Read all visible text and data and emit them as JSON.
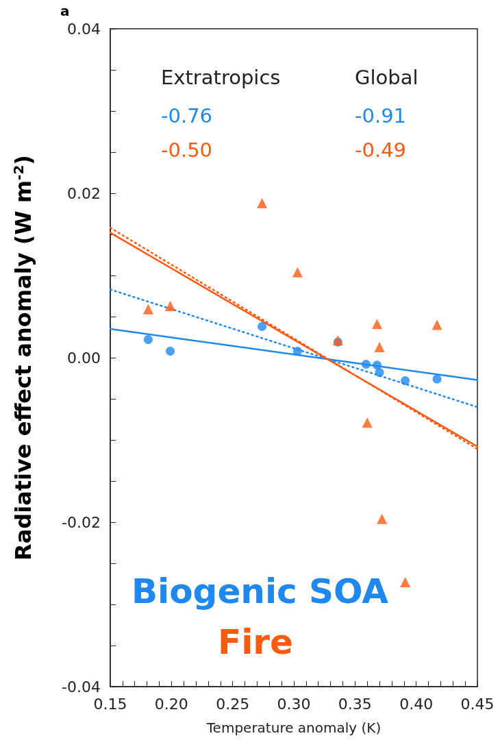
{
  "chart_data": {
    "type": "scatter",
    "xlabel": "Temperature anomaly (K)",
    "ylabel": "Radiative effect anomaly (W m$^{-2}$)",
    "annotations": [
      "a",
      "Extratropics",
      "Global",
      "-0.76",
      "-0.91",
      "-0.50",
      "-0.49"
    ],
    "xlim": [
      0.15,
      0.45
    ],
    "ylim": [
      -0.04,
      0.04
    ],
    "xticks": [
      {
        "value": 0.15,
        "label": "0.15"
      },
      {
        "value": 0.16,
        "label": null
      },
      {
        "value": 0.17,
        "label": null
      },
      {
        "value": 0.18,
        "label": null
      },
      {
        "value": 0.19,
        "label": null
      },
      {
        "value": 0.2,
        "label": "0.20"
      },
      {
        "value": 0.21,
        "label": null
      },
      {
        "value": 0.22,
        "label": null
      },
      {
        "value": 0.23,
        "label": null
      },
      {
        "value": 0.24,
        "label": null
      },
      {
        "value": 0.25,
        "label": "0.25"
      },
      {
        "value": 0.26,
        "label": null
      },
      {
        "value": 0.27,
        "label": null
      },
      {
        "value": 0.28,
        "label": null
      },
      {
        "value": 0.29,
        "label": null
      },
      {
        "value": 0.3,
        "label": "0.30"
      },
      {
        "value": 0.31,
        "label": null
      },
      {
        "value": 0.32,
        "label": null
      },
      {
        "value": 0.33,
        "label": null
      },
      {
        "value": 0.34,
        "label": null
      },
      {
        "value": 0.35,
        "label": "0.35"
      },
      {
        "value": 0.36,
        "label": null
      },
      {
        "value": 0.37,
        "label": null
      },
      {
        "value": 0.38,
        "label": null
      },
      {
        "value": 0.39,
        "label": null
      },
      {
        "value": 0.4,
        "label": "0.40"
      },
      {
        "value": 0.41,
        "label": null
      },
      {
        "value": 0.42,
        "label": null
      },
      {
        "value": 0.43,
        "label": null
      },
      {
        "value": 0.44,
        "label": null
      },
      {
        "value": 0.45,
        "label": "0.45"
      }
    ],
    "yticks": [
      -0.04,
      {
        "value": -0.035,
        "label": null
      },
      {
        "value": -0.03,
        "label": null
      },
      {
        "value": -0.025,
        "label": null
      },
      -0.02,
      {
        "value": -0.015,
        "label": null
      },
      {
        "value": -0.01,
        "label": null
      },
      {
        "value": -0.005,
        "label": null
      },
      {
        "value": 0,
        "label": "0.00"
      },
      {
        "value": 0.005,
        "label": null
      },
      {
        "value": 0.01,
        "label": null
      },
      {
        "value": 0.015,
        "label": null
      },
      0.02,
      {
        "value": 0.025,
        "label": null
      },
      {
        "value": 0.03,
        "label": null
      },
      {
        "value": 0.035,
        "label": null
      },
      0.04
    ],
    "grid": false,
    "legend": false,
    "series": [
      {
        "name": "Biogenic SOA",
        "marker": "circle",
        "color": "#1e88f0",
        "x": [
          0.181,
          0.199,
          0.274,
          0.303,
          0.336,
          0.359,
          0.368,
          0.37,
          0.391,
          0.417
        ],
        "values": [
          0.0022,
          0.0008,
          0.0038,
          0.0008,
          0.0019,
          -0.0008,
          -0.0009,
          -0.0018,
          -0.0028,
          -0.0026
        ]
      },
      {
        "name": "Fire",
        "marker": "triangle",
        "color": "#ff5a0f",
        "x": [
          0.181,
          0.199,
          0.274,
          0.303,
          0.336,
          0.36,
          0.368,
          0.37,
          0.372,
          0.391,
          0.417
        ],
        "values": [
          0.0059,
          0.0063,
          0.0188,
          0.0104,
          0.0021,
          -0.0079,
          0.0041,
          0.0013,
          -0.0196,
          -0.0273,
          0.004
        ]
      },
      {
        "type": "line",
        "marker": "none",
        "line_style": "solid",
        "color": "#1e88f0",
        "x": [
          0.15,
          0.45
        ],
        "values": [
          0.0035,
          -0.0027
        ]
      },
      {
        "type": "line",
        "marker": "none",
        "line_style": "dotted",
        "color": "#1e88f0",
        "x": [
          0.15,
          0.45
        ],
        "values": [
          0.0083,
          -0.006
        ]
      },
      {
        "type": "line",
        "marker": "none",
        "line_style": "solid",
        "color": "#ff5a0f",
        "x": [
          0.15,
          0.45
        ],
        "values": [
          0.0152,
          -0.0108
        ]
      },
      {
        "type": "line",
        "marker": "none",
        "line_style": "dotted",
        "color": "#ff5a0f",
        "x": [
          0.15,
          0.45
        ],
        "values": [
          0.0158,
          -0.0111
        ]
      }
    ]
  }
}
